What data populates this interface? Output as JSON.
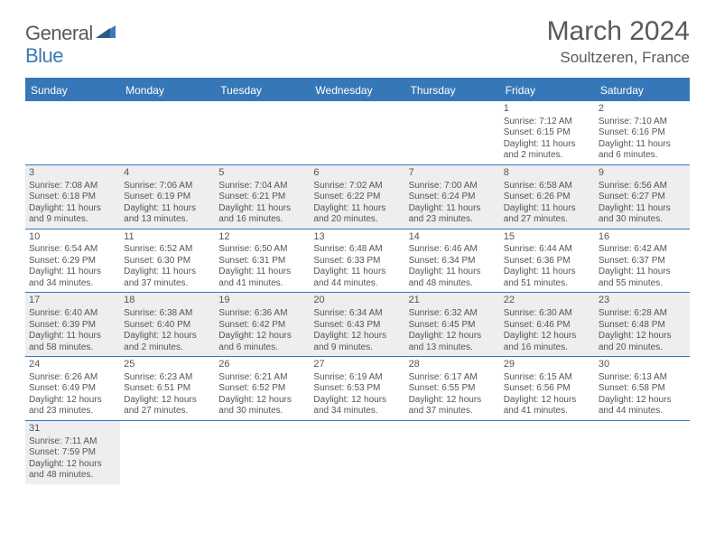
{
  "logo": {
    "part1": "General",
    "part2": "Blue"
  },
  "title": "March 2024",
  "location": "Soultzeren, France",
  "colors": {
    "brand_blue": "#3678b7",
    "shade_bg": "#eceeef",
    "text": "#555555",
    "white": "#ffffff"
  },
  "weekdays": [
    "Sunday",
    "Monday",
    "Tuesday",
    "Wednesday",
    "Thursday",
    "Friday",
    "Saturday"
  ],
  "weeks": [
    [
      {
        "blank": true
      },
      {
        "blank": true
      },
      {
        "blank": true
      },
      {
        "blank": true
      },
      {
        "blank": true
      },
      {
        "day": "1",
        "sunrise": "Sunrise: 7:12 AM",
        "sunset": "Sunset: 6:15 PM",
        "daylight1": "Daylight: 11 hours",
        "daylight2": "and 2 minutes."
      },
      {
        "day": "2",
        "sunrise": "Sunrise: 7:10 AM",
        "sunset": "Sunset: 6:16 PM",
        "daylight1": "Daylight: 11 hours",
        "daylight2": "and 6 minutes."
      }
    ],
    [
      {
        "day": "3",
        "shade": true,
        "sunrise": "Sunrise: 7:08 AM",
        "sunset": "Sunset: 6:18 PM",
        "daylight1": "Daylight: 11 hours",
        "daylight2": "and 9 minutes."
      },
      {
        "day": "4",
        "shade": true,
        "sunrise": "Sunrise: 7:06 AM",
        "sunset": "Sunset: 6:19 PM",
        "daylight1": "Daylight: 11 hours",
        "daylight2": "and 13 minutes."
      },
      {
        "day": "5",
        "shade": true,
        "sunrise": "Sunrise: 7:04 AM",
        "sunset": "Sunset: 6:21 PM",
        "daylight1": "Daylight: 11 hours",
        "daylight2": "and 16 minutes."
      },
      {
        "day": "6",
        "shade": true,
        "sunrise": "Sunrise: 7:02 AM",
        "sunset": "Sunset: 6:22 PM",
        "daylight1": "Daylight: 11 hours",
        "daylight2": "and 20 minutes."
      },
      {
        "day": "7",
        "shade": true,
        "sunrise": "Sunrise: 7:00 AM",
        "sunset": "Sunset: 6:24 PM",
        "daylight1": "Daylight: 11 hours",
        "daylight2": "and 23 minutes."
      },
      {
        "day": "8",
        "shade": true,
        "sunrise": "Sunrise: 6:58 AM",
        "sunset": "Sunset: 6:26 PM",
        "daylight1": "Daylight: 11 hours",
        "daylight2": "and 27 minutes."
      },
      {
        "day": "9",
        "shade": true,
        "sunrise": "Sunrise: 6:56 AM",
        "sunset": "Sunset: 6:27 PM",
        "daylight1": "Daylight: 11 hours",
        "daylight2": "and 30 minutes."
      }
    ],
    [
      {
        "day": "10",
        "sunrise": "Sunrise: 6:54 AM",
        "sunset": "Sunset: 6:29 PM",
        "daylight1": "Daylight: 11 hours",
        "daylight2": "and 34 minutes."
      },
      {
        "day": "11",
        "sunrise": "Sunrise: 6:52 AM",
        "sunset": "Sunset: 6:30 PM",
        "daylight1": "Daylight: 11 hours",
        "daylight2": "and 37 minutes."
      },
      {
        "day": "12",
        "sunrise": "Sunrise: 6:50 AM",
        "sunset": "Sunset: 6:31 PM",
        "daylight1": "Daylight: 11 hours",
        "daylight2": "and 41 minutes."
      },
      {
        "day": "13",
        "sunrise": "Sunrise: 6:48 AM",
        "sunset": "Sunset: 6:33 PM",
        "daylight1": "Daylight: 11 hours",
        "daylight2": "and 44 minutes."
      },
      {
        "day": "14",
        "sunrise": "Sunrise: 6:46 AM",
        "sunset": "Sunset: 6:34 PM",
        "daylight1": "Daylight: 11 hours",
        "daylight2": "and 48 minutes."
      },
      {
        "day": "15",
        "sunrise": "Sunrise: 6:44 AM",
        "sunset": "Sunset: 6:36 PM",
        "daylight1": "Daylight: 11 hours",
        "daylight2": "and 51 minutes."
      },
      {
        "day": "16",
        "sunrise": "Sunrise: 6:42 AM",
        "sunset": "Sunset: 6:37 PM",
        "daylight1": "Daylight: 11 hours",
        "daylight2": "and 55 minutes."
      }
    ],
    [
      {
        "day": "17",
        "shade": true,
        "sunrise": "Sunrise: 6:40 AM",
        "sunset": "Sunset: 6:39 PM",
        "daylight1": "Daylight: 11 hours",
        "daylight2": "and 58 minutes."
      },
      {
        "day": "18",
        "shade": true,
        "sunrise": "Sunrise: 6:38 AM",
        "sunset": "Sunset: 6:40 PM",
        "daylight1": "Daylight: 12 hours",
        "daylight2": "and 2 minutes."
      },
      {
        "day": "19",
        "shade": true,
        "sunrise": "Sunrise: 6:36 AM",
        "sunset": "Sunset: 6:42 PM",
        "daylight1": "Daylight: 12 hours",
        "daylight2": "and 6 minutes."
      },
      {
        "day": "20",
        "shade": true,
        "sunrise": "Sunrise: 6:34 AM",
        "sunset": "Sunset: 6:43 PM",
        "daylight1": "Daylight: 12 hours",
        "daylight2": "and 9 minutes."
      },
      {
        "day": "21",
        "shade": true,
        "sunrise": "Sunrise: 6:32 AM",
        "sunset": "Sunset: 6:45 PM",
        "daylight1": "Daylight: 12 hours",
        "daylight2": "and 13 minutes."
      },
      {
        "day": "22",
        "shade": true,
        "sunrise": "Sunrise: 6:30 AM",
        "sunset": "Sunset: 6:46 PM",
        "daylight1": "Daylight: 12 hours",
        "daylight2": "and 16 minutes."
      },
      {
        "day": "23",
        "shade": true,
        "sunrise": "Sunrise: 6:28 AM",
        "sunset": "Sunset: 6:48 PM",
        "daylight1": "Daylight: 12 hours",
        "daylight2": "and 20 minutes."
      }
    ],
    [
      {
        "day": "24",
        "sunrise": "Sunrise: 6:26 AM",
        "sunset": "Sunset: 6:49 PM",
        "daylight1": "Daylight: 12 hours",
        "daylight2": "and 23 minutes."
      },
      {
        "day": "25",
        "sunrise": "Sunrise: 6:23 AM",
        "sunset": "Sunset: 6:51 PM",
        "daylight1": "Daylight: 12 hours",
        "daylight2": "and 27 minutes."
      },
      {
        "day": "26",
        "sunrise": "Sunrise: 6:21 AM",
        "sunset": "Sunset: 6:52 PM",
        "daylight1": "Daylight: 12 hours",
        "daylight2": "and 30 minutes."
      },
      {
        "day": "27",
        "sunrise": "Sunrise: 6:19 AM",
        "sunset": "Sunset: 6:53 PM",
        "daylight1": "Daylight: 12 hours",
        "daylight2": "and 34 minutes."
      },
      {
        "day": "28",
        "sunrise": "Sunrise: 6:17 AM",
        "sunset": "Sunset: 6:55 PM",
        "daylight1": "Daylight: 12 hours",
        "daylight2": "and 37 minutes."
      },
      {
        "day": "29",
        "sunrise": "Sunrise: 6:15 AM",
        "sunset": "Sunset: 6:56 PM",
        "daylight1": "Daylight: 12 hours",
        "daylight2": "and 41 minutes."
      },
      {
        "day": "30",
        "sunrise": "Sunrise: 6:13 AM",
        "sunset": "Sunset: 6:58 PM",
        "daylight1": "Daylight: 12 hours",
        "daylight2": "and 44 minutes."
      }
    ],
    [
      {
        "day": "31",
        "shade": true,
        "sunrise": "Sunrise: 7:11 AM",
        "sunset": "Sunset: 7:59 PM",
        "daylight1": "Daylight: 12 hours",
        "daylight2": "and 48 minutes."
      },
      {
        "blank": true
      },
      {
        "blank": true
      },
      {
        "blank": true
      },
      {
        "blank": true
      },
      {
        "blank": true
      },
      {
        "blank": true
      }
    ]
  ]
}
